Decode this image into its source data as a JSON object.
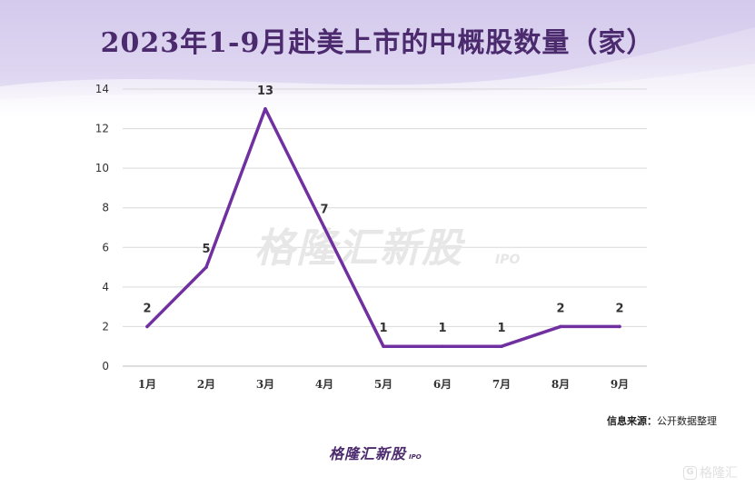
{
  "title": "2023年1-9月赴美上市的中概股数量（家）",
  "source": {
    "label": "信息来源：",
    "text": "公开数据整理"
  },
  "watermark": {
    "text": "格隆汇新股",
    "sub": "IPO"
  },
  "footer_logo": {
    "text": "格隆汇新股",
    "sub": "IPO"
  },
  "corner_mark": {
    "badge": "G",
    "text": "格隆汇"
  },
  "colors": {
    "line": "#7030a0",
    "title": "#4b2a6e",
    "grid": "#d9d9d9",
    "background_top": "#d9d0ee"
  },
  "chart_data": {
    "type": "line",
    "title": "2023年1-9月赴美上市的中概股数量（家）",
    "xlabel": "",
    "ylabel": "",
    "categories": [
      "1月",
      "2月",
      "3月",
      "4月",
      "5月",
      "6月",
      "7月",
      "8月",
      "9月"
    ],
    "series": [
      {
        "values": [
          2,
          5,
          13,
          7,
          1,
          1,
          1,
          2,
          2
        ]
      }
    ],
    "data_labels": [
      "2",
      "5",
      "13",
      "7",
      "1",
      "1",
      "1",
      "2",
      "2"
    ],
    "ylim": [
      0,
      14
    ],
    "yticks": [
      0,
      2,
      4,
      6,
      8,
      10,
      12,
      14
    ],
    "ytick_labels": [
      "0",
      "2",
      "4",
      "6",
      "8",
      "10",
      "12",
      "14"
    ],
    "grid": true,
    "legend": "none"
  }
}
